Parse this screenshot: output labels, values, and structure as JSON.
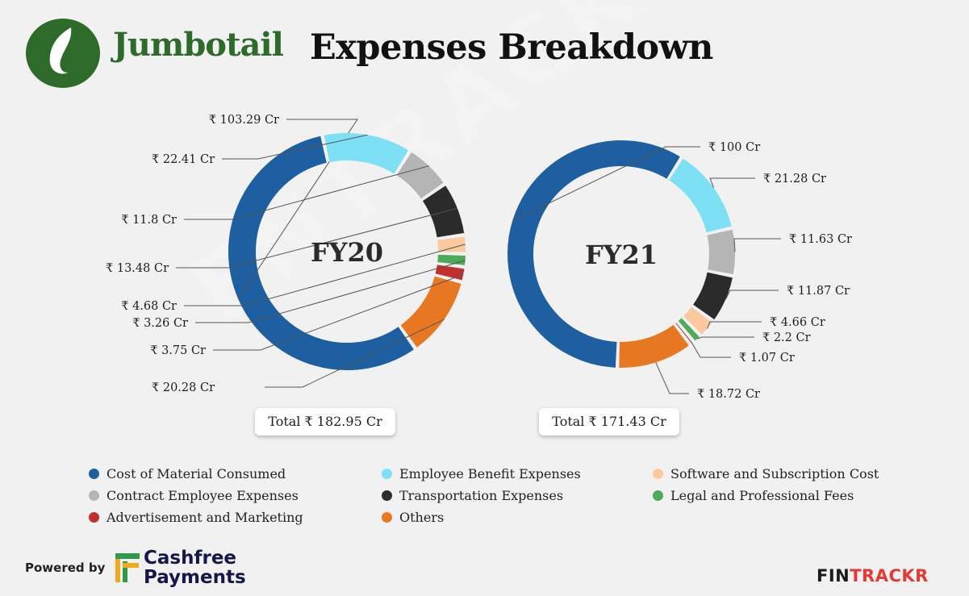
{
  "header": {
    "brand": "Jumbotail",
    "title": "Expenses Breakdown"
  },
  "colors": {
    "Cost of Material Consumed": "#1d5fa0",
    "Employee Benefit Expenses": "#7ee0f5",
    "Contract Employee Expenses": "#b5b5b5",
    "Transportation Expenses": "#2b2b2b",
    "Software and Subscription Cost": "#fbc99d",
    "Legal and Professional Fees": "#4caa58",
    "Advertisement and Marketing": "#c0302e",
    "Others": "#e87722"
  },
  "chart_data": [
    {
      "type": "pie",
      "donut": true,
      "center_label": "FY20",
      "total_label": "Total ₹ 182.95 Cr",
      "slices": [
        {
          "category": "Cost of Material Consumed",
          "value": 103.29,
          "label": "₹ 103.29 Cr"
        },
        {
          "category": "Others",
          "value": 20.28,
          "label": "₹ 20.28 Cr"
        },
        {
          "category": "Advertisement and Marketing",
          "value": 3.75,
          "label": "₹ 3.75 Cr"
        },
        {
          "category": "Legal and Professional Fees",
          "value": 3.26,
          "label": "₹ 3.26 Cr"
        },
        {
          "category": "Software and Subscription Cost",
          "value": 4.68,
          "label": "₹ 4.68 Cr"
        },
        {
          "category": "Transportation Expenses",
          "value": 13.48,
          "label": "₹ 13.48 Cr"
        },
        {
          "category": "Contract Employee Expenses",
          "value": 11.8,
          "label": "₹ 11.8 Cr"
        },
        {
          "category": "Employee Benefit Expenses",
          "value": 22.41,
          "label": "₹ 22.41 Cr"
        }
      ]
    },
    {
      "type": "pie",
      "donut": true,
      "center_label": "FY21",
      "total_label": "Total ₹ 171.43 Cr",
      "slices": [
        {
          "category": "Cost of Material Consumed",
          "value": 100,
          "label": "₹ 100 Cr"
        },
        {
          "category": "Employee Benefit Expenses",
          "value": 21.28,
          "label": "₹ 21.28 Cr"
        },
        {
          "category": "Contract Employee Expenses",
          "value": 11.63,
          "label": "₹ 11.63 Cr"
        },
        {
          "category": "Transportation Expenses",
          "value": 11.87,
          "label": "₹ 11.87 Cr"
        },
        {
          "category": "Software and Subscription Cost",
          "value": 4.66,
          "label": "₹ 4.66 Cr"
        },
        {
          "category": "Legal and Professional Fees",
          "value": 2.2,
          "label": "₹ 2.2 Cr"
        },
        {
          "category": "Advertisement and Marketing",
          "value": 1.07,
          "label": "₹ 1.07 Cr"
        },
        {
          "category": "Others",
          "value": 18.72,
          "label": "₹ 18.72 Cr"
        }
      ]
    }
  ],
  "legend": [
    "Cost of Material Consumed",
    "Employee Benefit Expenses",
    "Software and Subscription Cost",
    "Contract Employee Expenses",
    "Transportation Expenses",
    "Legal and Professional Fees",
    "Advertisement and Marketing",
    "Others"
  ],
  "footer": {
    "powered_by": "Powered by",
    "partner_line1": "Cashfree",
    "partner_line2": "Payments",
    "brand_part1": "FIN",
    "brand_part2": "TRACKR",
    "watermark": "ENTRACKR"
  }
}
